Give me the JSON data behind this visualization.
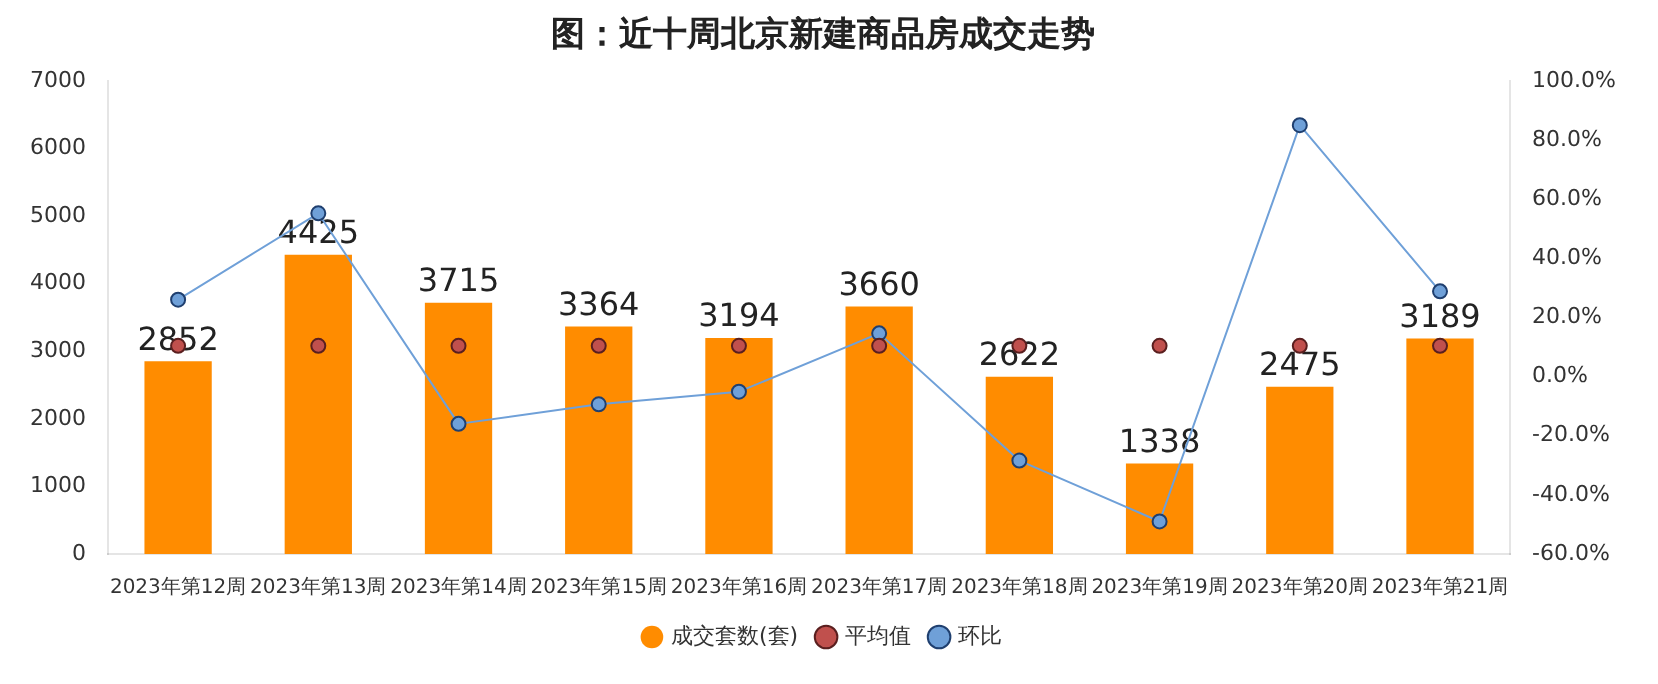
{
  "chart_data": {
    "type": "bar",
    "title": "图：近十周北京新建商品房成交走势",
    "categories": [
      "2023年第12周",
      "2023年第13周",
      "2023年第14周",
      "2023年第15周",
      "2023年第16周",
      "2023年第17周",
      "2023年第18周",
      "2023年第19周",
      "2023年第20周",
      "2023年第21周"
    ],
    "series": [
      {
        "name": "成交套数(套)",
        "color": "#ff8c00",
        "values": [
          2852,
          4425,
          3715,
          3364,
          3194,
          3660,
          2622,
          1338,
          2475,
          3189
        ],
        "data_labels": true
      },
      {
        "name": "平均值",
        "type": "scatter",
        "color": "#c0504d",
        "marker": "circle",
        "x": [
          "2023年第12周",
          "2023年第13周",
          "2023年第14周",
          "2023年第15周",
          "2023年第16周",
          "2023年第17周",
          "2023年第18周",
          "2023年第19周",
          "2023年第20周",
          "2023年第21周"
        ],
        "values": [
          3080,
          3080,
          3080,
          3080,
          3080,
          3080,
          3080,
          3080,
          3080,
          3080
        ]
      },
      {
        "name": "环比",
        "type": "line",
        "axis": "y2",
        "color": "#6fa0d8",
        "marker": "circle",
        "values": [
          26,
          55.2,
          -16,
          -9.4,
          -5.1,
          14.6,
          -28.4,
          -49,
          85,
          28.8
        ]
      }
    ],
    "ylim": [
      0,
      7000
    ],
    "yticks": [
      0,
      1000,
      2000,
      3000,
      4000,
      5000,
      6000,
      7000
    ],
    "y2lim": [
      -60,
      100
    ],
    "y2ticks": [
      {
        "value": -60,
        "label": "-60.0%"
      },
      {
        "value": -40,
        "label": "-40.0%"
      },
      {
        "value": -20,
        "label": "-20.0%"
      },
      {
        "value": 0,
        "label": "0.0%"
      },
      {
        "value": 20,
        "label": "20.0%"
      },
      {
        "value": 40,
        "label": "40.0%"
      },
      {
        "value": 60,
        "label": "60.0%"
      },
      {
        "value": 80,
        "label": "80.0%"
      },
      {
        "value": 100,
        "label": "100.0%"
      }
    ],
    "grid": false,
    "legend": "bottom"
  }
}
